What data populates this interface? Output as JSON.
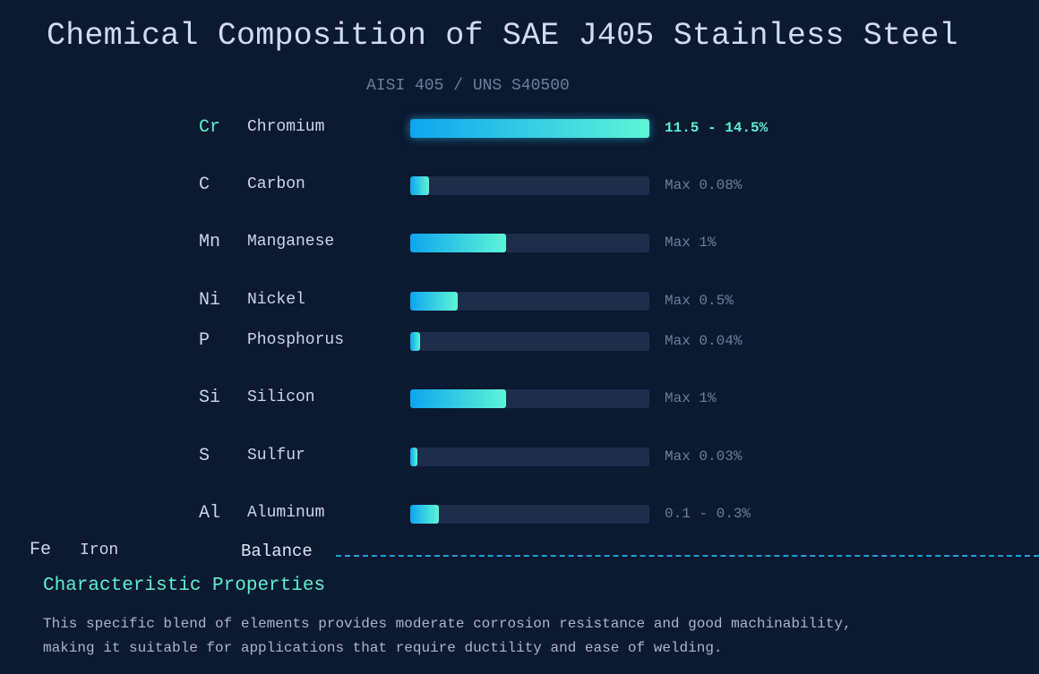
{
  "title": "Chemical Composition of SAE J405 Stainless Steel",
  "subtitle": "AISI 405 / UNS S40500",
  "chart_data": {
    "type": "bar",
    "orientation": "horizontal",
    "categories": [
      "Cr",
      "C",
      "Mn",
      "Ni",
      "P",
      "Si",
      "S",
      "Al"
    ],
    "rows": [
      {
        "symbol": "Cr",
        "name": "Chromium",
        "value_label": "11.5 - 14.5%",
        "fill_fraction": 1.0,
        "highlight": true
      },
      {
        "symbol": "C",
        "name": "Carbon",
        "value_label": "Max 0.08%",
        "fill_fraction": 0.08
      },
      {
        "symbol": "Mn",
        "name": "Manganese",
        "value_label": "Max 1%",
        "fill_fraction": 0.4
      },
      {
        "symbol": "Ni",
        "name": "Nickel",
        "value_label": "Max 0.5%",
        "fill_fraction": 0.2
      },
      {
        "symbol": "P",
        "name": "Phosphorus",
        "value_label": "Max 0.04%",
        "fill_fraction": 0.04
      },
      {
        "symbol": "Si",
        "name": "Silicon",
        "value_label": "Max 1%",
        "fill_fraction": 0.4
      },
      {
        "symbol": "S",
        "name": "Sulfur",
        "value_label": "Max 0.03%",
        "fill_fraction": 0.03
      },
      {
        "symbol": "Al",
        "name": "Aluminum",
        "value_label": "0.1 - 0.3%",
        "fill_fraction": 0.12
      }
    ],
    "balance": {
      "symbol": "Fe",
      "name": "Iron",
      "value_label": "Balance"
    },
    "colors": {
      "bar_start": "#0ea5ef",
      "bar_end": "#5ef5d6",
      "track": "#1e2d4a",
      "highlight": "#5ef0d0"
    }
  },
  "properties": {
    "title": "Characteristic Properties",
    "text": "This specific blend of elements provides moderate corrosion resistance and good machinability, making it suitable for applications that require ductility and ease of welding."
  }
}
